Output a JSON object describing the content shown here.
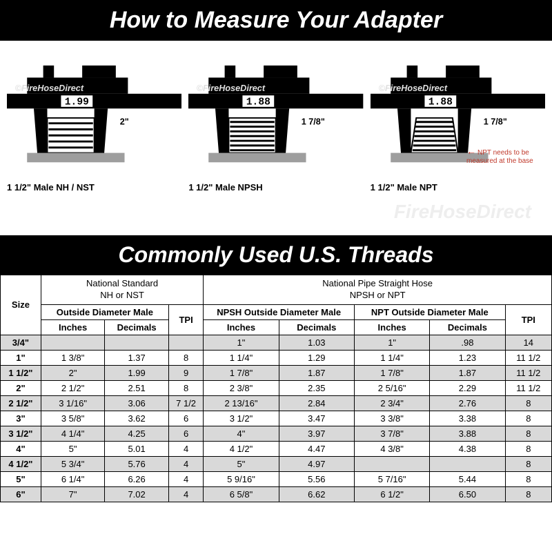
{
  "banners": {
    "top": "How to Measure Your Adapter",
    "table": "Commonly Used U.S. Threads"
  },
  "watermarks": {
    "caliper": "©FireHoseDirect",
    "row": "FireHoseDirect"
  },
  "calipers": [
    {
      "reading": "1.99",
      "frac": "2\"",
      "label": "1 1/2\" Male NH / NST",
      "note": ""
    },
    {
      "reading": "1.88",
      "frac": "1 7/8\"",
      "label": "1 1/2\" Male NPSH",
      "note": ""
    },
    {
      "reading": "1.88",
      "frac": "1 7/8\"",
      "label": "1 1/2\" Male NPT",
      "note": "NPT needs to be measured at the base"
    }
  ],
  "table": {
    "group1_line1": "National Standard",
    "group1_line2": "NH or NST",
    "group2_line1": "National Pipe Straight Hose",
    "group2_line2": "NPSH or NPT",
    "size_label": "Size",
    "od_male": "Outside Diameter Male",
    "npsh_od": "NPSH Outside Diameter Male",
    "npt_od": "NPT Outside Diameter Male",
    "tpi": "TPI",
    "inches": "Inches",
    "decimals": "Decimals",
    "rows": [
      {
        "size": "3/4\"",
        "nh_i": "",
        "nh_d": "",
        "nh_t": "",
        "npsh_i": "1\"",
        "npsh_d": "1.03",
        "npt_i": "1\"",
        "npt_d": ".98",
        "np_t": "14"
      },
      {
        "size": "1\"",
        "nh_i": "1 3/8\"",
        "nh_d": "1.37",
        "nh_t": "8",
        "npsh_i": "1 1/4\"",
        "npsh_d": "1.29",
        "npt_i": "1 1/4\"",
        "npt_d": "1.23",
        "np_t": "11 1/2"
      },
      {
        "size": "1 1/2\"",
        "nh_i": "2\"",
        "nh_d": "1.99",
        "nh_t": "9",
        "npsh_i": "1 7/8\"",
        "npsh_d": "1.87",
        "npt_i": "1 7/8\"",
        "npt_d": "1.87",
        "np_t": "11 1/2"
      },
      {
        "size": "2\"",
        "nh_i": "2 1/2\"",
        "nh_d": "2.51",
        "nh_t": "8",
        "npsh_i": "2 3/8\"",
        "npsh_d": "2.35",
        "npt_i": "2 5/16\"",
        "npt_d": "2.29",
        "np_t": "11 1/2"
      },
      {
        "size": "2 1/2\"",
        "nh_i": "3 1/16\"",
        "nh_d": "3.06",
        "nh_t": "7 1/2",
        "npsh_i": "2 13/16\"",
        "npsh_d": "2.84",
        "npt_i": "2 3/4\"",
        "npt_d": "2.76",
        "np_t": "8"
      },
      {
        "size": "3\"",
        "nh_i": "3 5/8\"",
        "nh_d": "3.62",
        "nh_t": "6",
        "npsh_i": "3 1/2\"",
        "npsh_d": "3.47",
        "npt_i": "3 3/8\"",
        "npt_d": "3.38",
        "np_t": "8"
      },
      {
        "size": "3 1/2\"",
        "nh_i": "4 1/4\"",
        "nh_d": "4.25",
        "nh_t": "6",
        "npsh_i": "4\"",
        "npsh_d": "3.97",
        "npt_i": "3 7/8\"",
        "npt_d": "3.88",
        "np_t": "8"
      },
      {
        "size": "4\"",
        "nh_i": "5\"",
        "nh_d": "5.01",
        "nh_t": "4",
        "npsh_i": "4 1/2\"",
        "npsh_d": "4.47",
        "npt_i": "4 3/8\"",
        "npt_d": "4.38",
        "np_t": "8"
      },
      {
        "size": "4 1/2\"",
        "nh_i": "5 3/4\"",
        "nh_d": "5.76",
        "nh_t": "4",
        "npsh_i": "5\"",
        "npsh_d": "4.97",
        "npt_i": "",
        "npt_d": "",
        "np_t": "8"
      },
      {
        "size": "5\"",
        "nh_i": "6 1/4\"",
        "nh_d": "6.26",
        "nh_t": "4",
        "npsh_i": "5 9/16\"",
        "npsh_d": "5.56",
        "npt_i": "5 7/16\"",
        "npt_d": "5.44",
        "np_t": "8"
      },
      {
        "size": "6\"",
        "nh_i": "7\"",
        "nh_d": "7.02",
        "nh_t": "4",
        "npsh_i": "6 5/8\"",
        "npsh_d": "6.62",
        "npt_i": "6 1/2\"",
        "npt_d": "6.50",
        "np_t": "8"
      }
    ]
  },
  "style": {
    "shade_color": "#d9d9d9",
    "banner_bg": "#000000",
    "banner_fg": "#ffffff",
    "note_color": "#c0392b",
    "border_color": "#000000",
    "cell_fontsize": 13,
    "title_fontsize": 34
  }
}
